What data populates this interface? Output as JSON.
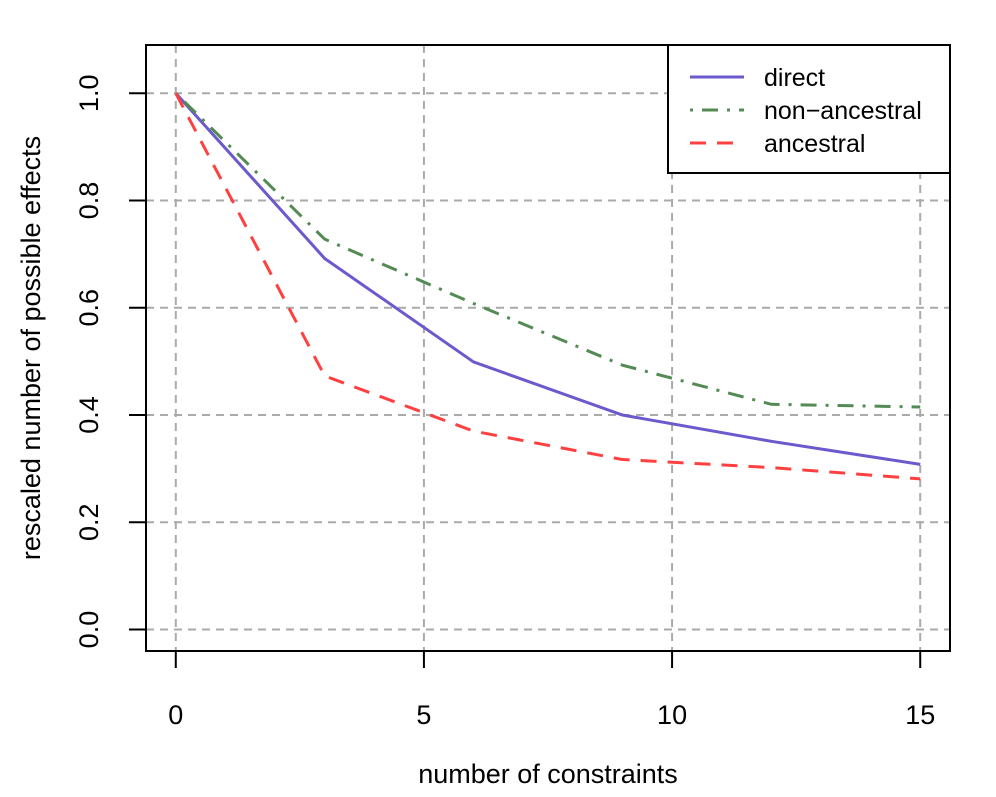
{
  "chart_data": {
    "type": "line",
    "title": "",
    "xlabel": "number of constraints",
    "ylabel": "rescaled number of possible effects",
    "x": [
      0,
      3,
      6,
      9,
      12,
      15
    ],
    "xlim": [
      -0.6,
      15.6
    ],
    "ylim": [
      -0.04,
      1.09
    ],
    "xticks": [
      0,
      5,
      10,
      15
    ],
    "yticks": [
      0.0,
      0.2,
      0.4,
      0.6,
      0.8,
      1.0
    ],
    "xtick_labels": [
      "0",
      "5",
      "10",
      "15"
    ],
    "ytick_labels": [
      "0.0",
      "0.2",
      "0.4",
      "0.6",
      "0.8",
      "1.0"
    ],
    "grid": true,
    "legend_position": "top-right",
    "series": [
      {
        "name": "direct",
        "color": "#6a5acd",
        "dash": "solid",
        "values": [
          1.0,
          0.692,
          0.499,
          0.4,
          0.351,
          0.308
        ]
      },
      {
        "name": "non−ancestral",
        "color": "#548b54",
        "dash": "dotdash",
        "values": [
          1.0,
          0.728,
          0.608,
          0.493,
          0.42,
          0.415
        ]
      },
      {
        "name": "ancestral",
        "color": "#ff4040",
        "dash": "dashed",
        "values": [
          1.0,
          0.473,
          0.37,
          0.317,
          0.302,
          0.281
        ]
      }
    ]
  }
}
